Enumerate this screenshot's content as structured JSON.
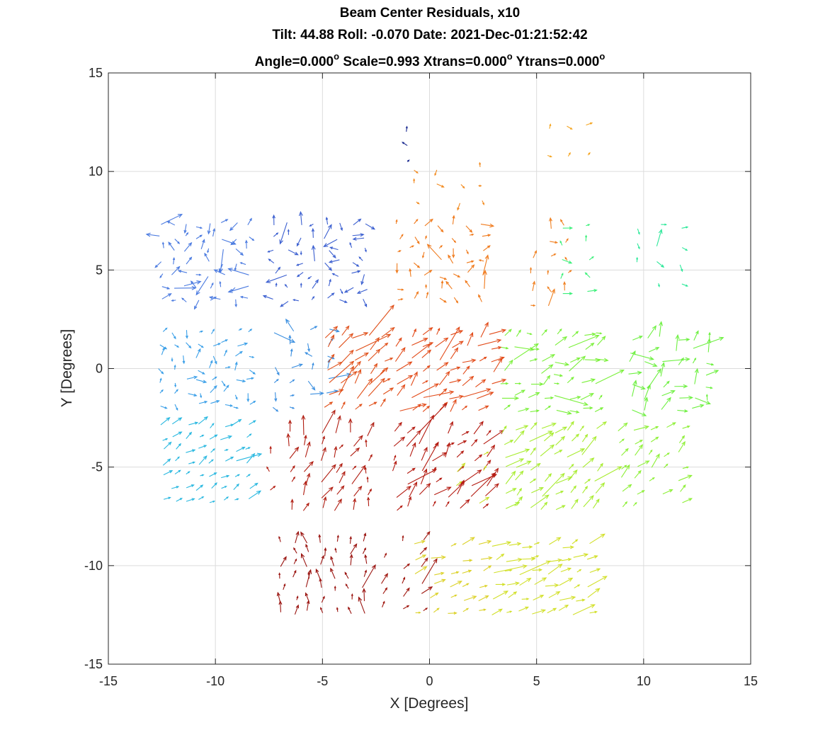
{
  "chart_data": {
    "type": "quiver",
    "title_lines": [
      "Beam Center Residuals, x10",
      "Tilt: 44.88  Roll: -0.070  Date: 2021-Dec-01:21:52:42"
    ],
    "title_line3": {
      "angle_text": "Angle=0.000",
      "scale_xtrans_text": " Scale=0.993 Xtrans=0.000",
      "ytrans_text": " Ytrans=0.000",
      "degree_mark": "o"
    },
    "xlabel": "X [Degrees]",
    "ylabel": "Y [Degrees]",
    "xlim": [
      -15,
      15
    ],
    "ylim": [
      -15,
      15
    ],
    "xticks": [
      -15,
      -10,
      -5,
      0,
      5,
      10,
      15
    ],
    "yticks": [
      -15,
      -10,
      -5,
      0,
      5,
      10,
      15
    ],
    "xtick_labels": [
      "-15",
      "-10",
      "-5",
      "0",
      "5",
      "10",
      "15"
    ],
    "ytick_labels": [
      "-15",
      "-10",
      "-5",
      "0",
      "5",
      "10",
      "15"
    ],
    "grid": true,
    "colors": {
      "grid": "#dcdcdc",
      "axes": "#262626"
    },
    "groups": [
      {
        "cx": -10.5,
        "cy": 5.4,
        "w": 4.0,
        "h": 3.8,
        "nx": 8,
        "ny": 7,
        "color": "#4a7ae0",
        "amp": 0.45,
        "dir": 0,
        "spread": 180,
        "longish": 0.15,
        "seed": 11
      },
      {
        "cx": -5.1,
        "cy": 5.4,
        "w": 4.2,
        "h": 3.8,
        "nx": 8,
        "ny": 7,
        "color": "#3b5fd0",
        "amp": 0.45,
        "dir": 0,
        "spread": 180,
        "longish": 0.15,
        "seed": 12
      },
      {
        "cx": -1.0,
        "cy": 11.3,
        "w": 0.3,
        "h": 1.4,
        "nx": 1,
        "ny": 3,
        "color": "#1a2a90",
        "amp": 0.3,
        "dir": 100,
        "spread": 60,
        "longish": 0.0,
        "seed": 13
      },
      {
        "cx": 0.9,
        "cy": 9.3,
        "w": 3.0,
        "h": 1.7,
        "nx": 4,
        "ny": 3,
        "color": "#f28a1e",
        "amp": 0.3,
        "dir": 0,
        "spread": 120,
        "longish": 0.0,
        "seed": 14
      },
      {
        "cx": 0.5,
        "cy": 5.4,
        "w": 3.9,
        "h": 3.8,
        "nx": 7,
        "ny": 7,
        "color": "#f07a1c",
        "amp": 0.4,
        "dir": 30,
        "spread": 150,
        "longish": 0.1,
        "seed": 15
      },
      {
        "cx": 6.5,
        "cy": 11.5,
        "w": 1.8,
        "h": 1.5,
        "nx": 3,
        "ny": 2,
        "color": "#f5a623",
        "amp": 0.3,
        "dir": 0,
        "spread": 90,
        "longish": 0.0,
        "seed": 16
      },
      {
        "cx": 5.6,
        "cy": 5.2,
        "w": 1.6,
        "h": 4.0,
        "nx": 3,
        "ny": 6,
        "color": "#f08020",
        "amp": 0.45,
        "dir": 50,
        "spread": 80,
        "longish": 0.1,
        "seed": 17
      },
      {
        "cx": 6.8,
        "cy": 5.5,
        "w": 1.2,
        "h": 3.4,
        "nx": 2,
        "ny": 5,
        "color": "#3cf07a",
        "amp": 0.4,
        "dir": 60,
        "spread": 100,
        "longish": 0.1,
        "seed": 18
      },
      {
        "cx": 10.7,
        "cy": 5.8,
        "w": 2.0,
        "h": 2.8,
        "nx": 3,
        "ny": 4,
        "color": "#2de89a",
        "amp": 0.35,
        "dir": 0,
        "spread": 90,
        "longish": 0.1,
        "seed": 19
      },
      {
        "cx": -10.5,
        "cy": 0.0,
        "w": 4.1,
        "h": 3.7,
        "nx": 8,
        "ny": 7,
        "color": "#3a9fe8",
        "amp": 0.4,
        "dir": 0,
        "spread": 90,
        "longish": 0.05,
        "seed": 21
      },
      {
        "cx": -6.0,
        "cy": 0.0,
        "w": 2.5,
        "h": 3.8,
        "nx": 4,
        "ny": 7,
        "color": "#3b8fe0",
        "amp": 0.45,
        "dir": 30,
        "spread": 120,
        "longish": 0.15,
        "seed": 22
      },
      {
        "cx": -3.5,
        "cy": -0.2,
        "w": 2.6,
        "h": 3.6,
        "nx": 5,
        "ny": 7,
        "color": "#e0501a",
        "amp": 0.7,
        "dir": 45,
        "spread": 25,
        "longish": 0.2,
        "seed": 23
      },
      {
        "cx": 0.7,
        "cy": -0.2,
        "w": 4.4,
        "h": 3.8,
        "nx": 8,
        "ny": 7,
        "color": "#e24a18",
        "amp": 0.7,
        "dir": 40,
        "spread": 30,
        "longish": 0.2,
        "seed": 24
      },
      {
        "cx": 5.6,
        "cy": -0.2,
        "w": 4.4,
        "h": 3.8,
        "nx": 8,
        "ny": 7,
        "color": "#7af03a",
        "amp": 0.6,
        "dir": 20,
        "spread": 40,
        "longish": 0.1,
        "seed": 25
      },
      {
        "cx": 11.2,
        "cy": -0.3,
        "w": 3.6,
        "h": 3.6,
        "nx": 6,
        "ny": 7,
        "color": "#6df040",
        "amp": 0.65,
        "dir": 35,
        "spread": 60,
        "longish": 0.2,
        "seed": 26
      },
      {
        "cx": -10.5,
        "cy": -4.8,
        "w": 4.0,
        "h": 3.8,
        "nx": 8,
        "ny": 7,
        "color": "#2ab8e0",
        "amp": 0.45,
        "dir": 35,
        "spread": 20,
        "longish": 0.05,
        "seed": 31
      },
      {
        "cx": -4.7,
        "cy": -5.2,
        "w": 3.6,
        "h": 3.8,
        "nx": 6,
        "ny": 7,
        "color": "#b01c10",
        "amp": 0.6,
        "dir": 70,
        "spread": 25,
        "longish": 0.15,
        "seed": 32
      },
      {
        "cx": -7.5,
        "cy": -5.3,
        "w": 0.5,
        "h": 1.8,
        "nx": 1,
        "ny": 3,
        "color": "#b41e12",
        "amp": 0.4,
        "dir": 80,
        "spread": 40,
        "longish": 0.0,
        "seed": 33
      },
      {
        "cx": 0.5,
        "cy": -5.2,
        "w": 4.2,
        "h": 3.8,
        "nx": 8,
        "ny": 7,
        "color": "#b41a10",
        "amp": 0.7,
        "dir": 50,
        "spread": 25,
        "longish": 0.2,
        "seed": 34
      },
      {
        "cx": 1.8,
        "cy": -5.6,
        "w": 1.2,
        "h": 2.6,
        "nx": 2,
        "ny": 4,
        "color": "#c8e028",
        "amp": 0.5,
        "dir": 45,
        "spread": 20,
        "longish": 0.1,
        "seed": 35
      },
      {
        "cx": 5.6,
        "cy": -5.1,
        "w": 4.3,
        "h": 3.9,
        "nx": 8,
        "ny": 7,
        "color": "#a8ec30",
        "amp": 0.65,
        "dir": 40,
        "spread": 20,
        "longish": 0.15,
        "seed": 36
      },
      {
        "cx": 10.3,
        "cy": -5.0,
        "w": 2.8,
        "h": 3.8,
        "nx": 5,
        "ny": 7,
        "color": "#8ef038",
        "amp": 0.6,
        "dir": 40,
        "spread": 25,
        "longish": 0.2,
        "seed": 37
      },
      {
        "cx": -5.0,
        "cy": -10.6,
        "w": 3.9,
        "h": 3.6,
        "nx": 7,
        "ny": 7,
        "color": "#9a1410",
        "amp": 0.5,
        "dir": 90,
        "spread": 30,
        "longish": 0.1,
        "seed": 41
      },
      {
        "cx": -1.3,
        "cy": -10.5,
        "w": 1.8,
        "h": 3.4,
        "nx": 3,
        "ny": 6,
        "color": "#a01810",
        "amp": 0.6,
        "dir": 60,
        "spread": 30,
        "longish": 0.15,
        "seed": 42
      },
      {
        "cx": 0.9,
        "cy": -10.7,
        "w": 3.0,
        "h": 3.4,
        "nx": 5,
        "ny": 6,
        "color": "#dcd22a",
        "amp": 0.55,
        "dir": 20,
        "spread": 20,
        "longish": 0.05,
        "seed": 43
      },
      {
        "cx": 5.2,
        "cy": -10.7,
        "w": 4.4,
        "h": 3.4,
        "nx": 8,
        "ny": 6,
        "color": "#d2e02a",
        "amp": 0.6,
        "dir": 20,
        "spread": 20,
        "longish": 0.1,
        "seed": 44
      }
    ]
  }
}
